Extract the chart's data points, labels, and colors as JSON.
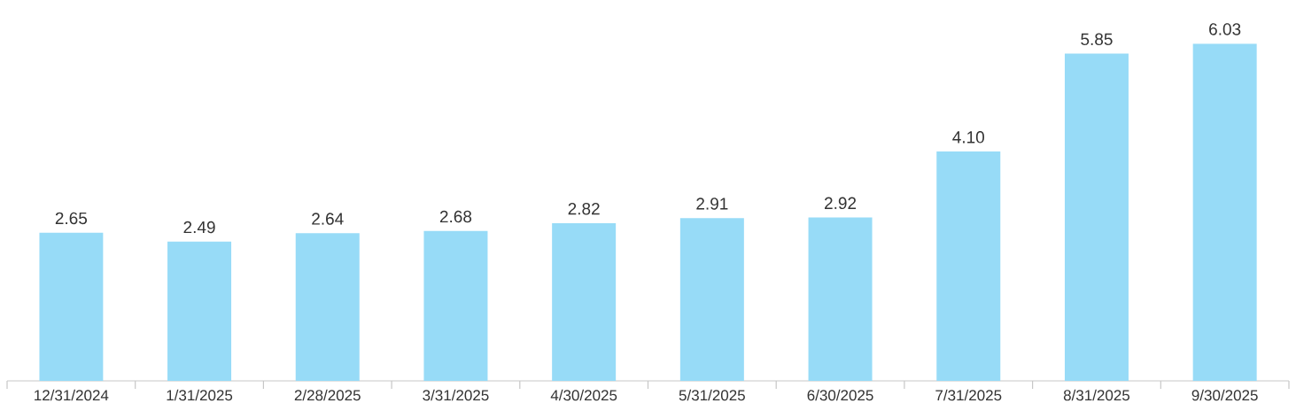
{
  "chart_data": {
    "type": "bar",
    "categories": [
      "12/31/2024",
      "1/31/2025",
      "2/28/2025",
      "3/31/2025",
      "4/30/2025",
      "5/31/2025",
      "6/30/2025",
      "7/31/2025",
      "8/31/2025",
      "9/30/2025"
    ],
    "values": [
      2.65,
      2.49,
      2.64,
      2.68,
      2.82,
      2.91,
      2.92,
      4.1,
      5.85,
      6.03
    ],
    "value_labels": [
      "2.65",
      "2.49",
      "2.64",
      "2.68",
      "2.82",
      "2.91",
      "2.92",
      "4.10",
      "5.85",
      "6.03"
    ],
    "color": "#97dbf7"
  }
}
